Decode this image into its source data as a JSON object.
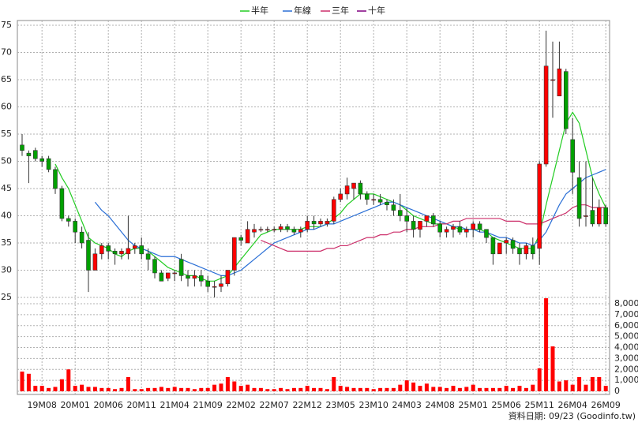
{
  "chart_data": {
    "type": "candlestick",
    "categories": [
      null,
      null,
      null,
      "19M08",
      null,
      null,
      null,
      null,
      "20M01",
      null,
      null,
      null,
      null,
      "20M06",
      null,
      null,
      null,
      null,
      "20M11",
      null,
      null,
      null,
      null,
      "21M04",
      null,
      null,
      null,
      null,
      "21M09",
      null,
      null,
      null,
      null,
      "22M02",
      null,
      null,
      null,
      null,
      "22M07",
      null,
      null,
      null,
      null,
      "22M12",
      null,
      null,
      null,
      null,
      "23M05",
      null,
      null,
      null,
      null,
      "23M10",
      null,
      null,
      null,
      null,
      "24M03",
      null,
      null,
      null,
      null,
      "24M08",
      null,
      null,
      null,
      null,
      "25M01",
      null,
      null,
      null,
      null,
      "25M06",
      null,
      null,
      null,
      null,
      "25M11",
      null,
      null,
      null,
      null,
      "26M04",
      null,
      null,
      null,
      null,
      "26M09"
    ],
    "open": [
      53,
      51.5,
      52,
      50.5,
      50.5,
      48.5,
      45,
      39.5,
      39,
      37,
      35.5,
      30,
      33,
      34.5,
      33.5,
      33,
      33,
      34,
      34.5,
      33,
      32,
      29.5,
      28.5,
      29.5,
      32,
      29,
      28.5,
      29,
      28,
      27,
      27,
      27.5,
      30,
      36,
      35,
      37,
      37.5,
      37.5,
      37.5,
      37.5,
      38,
      37.5,
      37,
      37.5,
      39,
      38.5,
      38.5,
      39,
      43,
      44,
      45,
      46,
      44,
      43,
      43,
      42.5,
      42,
      41,
      40,
      39,
      37.5,
      39,
      40,
      38.5,
      37,
      37.5,
      38,
      37,
      37.5,
      38.5,
      37.5,
      36,
      33,
      35,
      35.5,
      34,
      33,
      34.5,
      34,
      49.5,
      65,
      62,
      66.5,
      54,
      47,
      40,
      41,
      38.5,
      41.5
    ],
    "high": [
      55,
      52,
      52.5,
      51,
      51,
      49,
      45.5,
      40,
      39.5,
      38,
      37,
      34,
      35,
      35,
      34,
      34,
      40,
      35,
      36,
      34,
      32.5,
      30,
      29.5,
      30,
      33,
      30,
      30,
      30,
      29,
      28,
      29,
      30,
      36,
      36.5,
      39,
      38.5,
      38,
      38,
      38,
      38.5,
      38.5,
      38,
      38,
      40,
      40,
      39.5,
      39.5,
      43.5,
      45,
      47,
      46,
      46.5,
      44.5,
      44,
      44,
      43,
      43,
      44,
      41.5,
      40,
      39,
      40,
      40.5,
      39,
      38,
      38.5,
      39,
      38,
      39,
      39,
      37.5,
      36,
      35,
      36,
      36,
      35,
      35,
      36,
      50,
      74,
      72,
      72,
      67,
      58,
      50,
      50,
      47,
      43,
      42
    ],
    "low": [
      51,
      46,
      50,
      49,
      48,
      44,
      39,
      38,
      35,
      34,
      26,
      30,
      32,
      32,
      31,
      32,
      32,
      33,
      32,
      30,
      28.5,
      28,
      28,
      28,
      28,
      27,
      27,
      27,
      26,
      25,
      26,
      27,
      29,
      34.5,
      35,
      36,
      37,
      37,
      37,
      37,
      37,
      36.5,
      36,
      37,
      37.5,
      38,
      38,
      38.5,
      42.5,
      43,
      43,
      43,
      42,
      42,
      42,
      41,
      40,
      39,
      37,
      36,
      36,
      38,
      38,
      36,
      36,
      36,
      36.5,
      36,
      36,
      37,
      35,
      31,
      33,
      33,
      33,
      31,
      32,
      32,
      31,
      49,
      58,
      62,
      55,
      44,
      38,
      38,
      38,
      38,
      38
    ],
    "close": [
      52,
      51,
      50.5,
      50,
      48.5,
      45,
      39.5,
      39,
      37,
      35,
      30,
      33,
      34.5,
      33.5,
      33,
      33.5,
      34,
      34.5,
      33,
      32,
      29.5,
      28,
      29.5,
      29.5,
      29,
      28.5,
      29,
      28,
      27,
      27,
      27.5,
      30,
      36,
      35.5,
      37.5,
      37.5,
      37.5,
      37.5,
      37.5,
      38,
      37.5,
      37,
      37.5,
      39,
      38.5,
      39,
      39,
      43,
      44,
      45.5,
      46,
      44,
      43,
      43,
      42.5,
      42,
      41,
      40,
      39,
      37.5,
      39,
      40,
      38.5,
      37,
      37.5,
      38,
      37,
      37.5,
      38.5,
      37.5,
      36,
      33,
      35,
      35.5,
      34,
      33,
      34.5,
      33,
      49.5,
      67.5,
      65,
      67,
      56,
      48,
      39.5,
      40,
      38.5,
      41.5,
      38.5
    ],
    "volume": [
      1800,
      1600,
      500,
      500,
      300,
      400,
      1100,
      2000,
      500,
      600,
      400,
      400,
      300,
      300,
      200,
      300,
      1300,
      200,
      200,
      300,
      300,
      400,
      300,
      400,
      300,
      300,
      200,
      300,
      300,
      600,
      700,
      1300,
      900,
      500,
      600,
      300,
      300,
      200,
      200,
      300,
      200,
      300,
      300,
      500,
      300,
      300,
      200,
      1300,
      500,
      400,
      300,
      300,
      300,
      200,
      300,
      300,
      300,
      600,
      1000,
      800,
      500,
      700,
      400,
      400,
      300,
      500,
      300,
      400,
      600,
      300,
      300,
      300,
      300,
      500,
      300,
      500,
      300,
      600,
      2100,
      8500,
      4100,
      900,
      1000,
      600,
      1300,
      600,
      1300,
      1300,
      500
    ],
    "up_color": "#ff0000",
    "down_color": "#00a000",
    "volume_color": "#ff0000",
    "series": [
      {
        "name": "半年",
        "color": "#22cc22",
        "values": [
          null,
          null,
          null,
          null,
          null,
          49.5,
          47,
          45,
          42,
          39,
          36,
          35,
          34.5,
          34,
          33,
          32.5,
          33.5,
          34,
          34,
          33.5,
          32.5,
          31.5,
          30.5,
          30,
          29.5,
          29,
          29,
          28.5,
          28,
          28,
          28.5,
          29,
          30.5,
          32,
          33.5,
          35,
          36.5,
          37,
          37.5,
          37.5,
          37.5,
          37.5,
          37.5,
          38,
          38,
          38,
          38.5,
          39.5,
          40.5,
          42,
          43,
          44,
          44,
          44,
          43.5,
          43,
          42.5,
          42,
          41,
          40,
          39.5,
          39,
          38.5,
          38.5,
          38.5,
          38,
          37.5,
          37.5,
          37.5,
          37.5,
          37,
          36,
          35.5,
          35,
          34.5,
          34,
          34,
          34,
          36.5,
          42,
          47,
          52,
          57,
          59,
          57,
          52,
          47,
          44,
          41.5
        ]
      },
      {
        "name": "年線",
        "color": "#2a6fd6",
        "values": [
          null,
          null,
          null,
          null,
          null,
          null,
          null,
          null,
          null,
          null,
          null,
          42.5,
          41,
          40,
          38.5,
          37,
          35.5,
          34.5,
          34,
          33.5,
          33,
          32.5,
          32.5,
          32.5,
          32,
          31.5,
          31,
          30.5,
          30,
          29.5,
          29,
          29,
          29.5,
          30,
          31,
          32,
          33,
          34,
          35,
          35.5,
          36,
          36.5,
          37,
          37.5,
          37.5,
          38,
          38.5,
          38.5,
          39,
          39.5,
          40,
          40.5,
          41,
          41.5,
          42,
          42.5,
          42.5,
          42,
          41.5,
          41,
          40.5,
          40,
          39.5,
          39,
          38.5,
          38,
          38,
          37.5,
          37.5,
          37,
          37,
          36.5,
          36,
          36,
          35.5,
          35,
          35,
          34.5,
          35.5,
          37,
          39.5,
          42,
          44,
          45,
          46,
          47,
          47.5,
          48,
          48.5
        ]
      },
      {
        "name": "三年",
        "color": "#cc2f6a",
        "values": [
          null,
          null,
          null,
          null,
          null,
          null,
          null,
          null,
          null,
          null,
          null,
          null,
          null,
          null,
          null,
          null,
          null,
          null,
          null,
          null,
          null,
          null,
          null,
          null,
          null,
          null,
          null,
          null,
          null,
          null,
          null,
          null,
          null,
          null,
          null,
          null,
          35.5,
          35,
          34.5,
          34,
          33.5,
          33.5,
          33.5,
          33.5,
          33.5,
          33.5,
          34,
          34,
          34.5,
          34.5,
          35,
          35.5,
          36,
          36,
          36.5,
          36.5,
          37,
          37,
          37.5,
          37.5,
          38,
          38,
          38,
          38.5,
          38.5,
          39,
          39,
          39.5,
          39.5,
          39.5,
          39.5,
          39.5,
          39.5,
          39,
          39,
          39,
          38.5,
          38.5,
          38.5,
          39,
          39.5,
          40,
          40.5,
          41.5,
          42,
          42,
          41.5,
          41.5,
          41.5
        ]
      },
      {
        "name": "十年",
        "color": "#800080",
        "values": [
          null,
          null,
          null,
          null,
          null,
          null,
          null,
          null,
          null,
          null,
          null,
          null,
          null,
          null,
          null,
          null,
          null,
          null,
          null,
          null,
          null,
          null,
          null,
          null,
          null,
          null,
          null,
          null,
          null,
          null,
          null,
          null,
          null,
          null,
          null,
          null,
          null,
          null,
          null,
          null,
          null,
          null,
          null,
          null,
          null,
          null,
          null,
          null,
          null,
          null,
          null,
          null,
          null,
          null,
          null,
          null,
          null,
          null,
          null,
          null,
          null,
          null,
          null,
          null,
          null,
          null,
          null,
          null,
          null,
          null,
          null,
          null,
          null,
          null,
          null,
          null,
          null,
          null,
          null,
          null,
          null,
          null,
          null,
          null,
          null,
          null,
          null,
          null,
          null
        ]
      }
    ],
    "ylim": [
      25,
      75
    ],
    "yticks": [
      25,
      30,
      35,
      40,
      45,
      50,
      55,
      60,
      65,
      70,
      75
    ],
    "y2lim": [
      0,
      8000
    ],
    "y2ticks": [
      0,
      {
        "value": 1000,
        "label": "1,000"
      },
      {
        "value": 2000,
        "label": "2,000"
      },
      {
        "value": 3000,
        "label": "3,000"
      },
      {
        "value": 4000,
        "label": "4,000"
      },
      {
        "value": 5000,
        "label": "5,000"
      },
      {
        "value": 6000,
        "label": "6,000"
      },
      {
        "value": 7000,
        "label": "7,000"
      },
      {
        "value": 8000,
        "label": "8,000"
      }
    ],
    "grid": true,
    "footnote": "資料日期: 09/23  (Goodinfo.tw)"
  }
}
